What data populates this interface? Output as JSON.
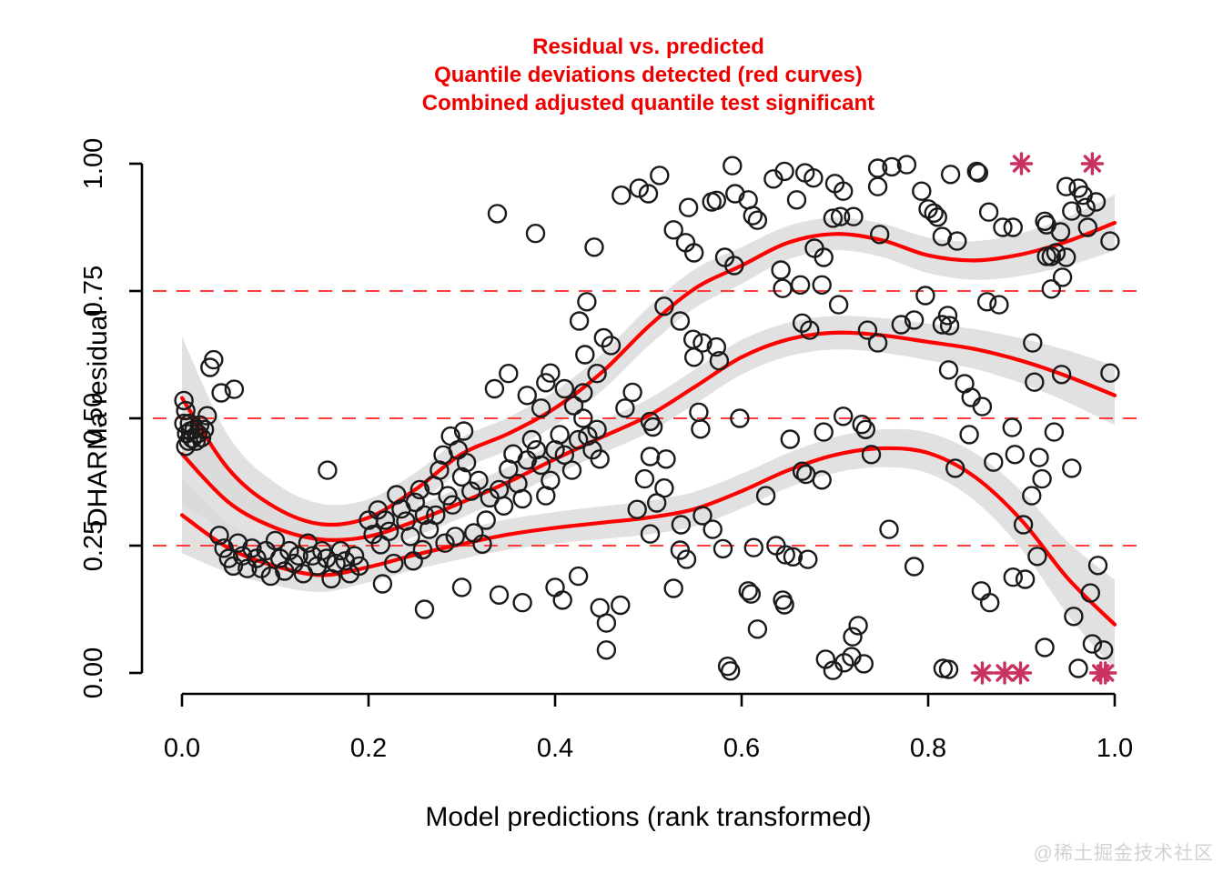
{
  "watermark": "@稀土掘金技术社区",
  "chart_data": {
    "type": "scatter",
    "title_lines": [
      "Residual vs. predicted",
      "Quantile deviations detected (red curves)",
      "Combined adjusted quantile test significant"
    ],
    "xlabel": "Model predictions (rank transformed)",
    "ylabel": "DHARMa residual",
    "xlim": [
      0,
      1
    ],
    "ylim": [
      0,
      1
    ],
    "grid": false,
    "x_ticks": {
      "values": [
        0,
        0.2,
        0.4,
        0.6,
        0.8,
        1.0
      ],
      "labels": [
        "0.0",
        "0.2",
        "0.4",
        "0.6",
        "0.8",
        "1.0"
      ]
    },
    "y_ticks": {
      "values": [
        0,
        0.25,
        0.5,
        0.75,
        1.0
      ],
      "labels": [
        "0.00",
        "0.25",
        "0.50",
        "0.75",
        "1.00"
      ]
    },
    "reference_lines": [
      0.25,
      0.5,
      0.75
    ],
    "colors": {
      "curve": "#ff0000",
      "reference": "#ff3b3b",
      "band": "#d9d9d9",
      "point": "#1a1a1a",
      "outlier": "#c9315e",
      "title": "#ee0000"
    },
    "quantile_curves": [
      {
        "name": "upper-0.75",
        "x": [
          0,
          0.05,
          0.1,
          0.15,
          0.2,
          0.25,
          0.3,
          0.35,
          0.4,
          0.45,
          0.5,
          0.55,
          0.6,
          0.65,
          0.7,
          0.75,
          0.8,
          0.85,
          0.9,
          0.95,
          1
        ],
        "y": [
          0.54,
          0.4,
          0.325,
          0.292,
          0.305,
          0.36,
          0.43,
          0.47,
          0.52,
          0.59,
          0.68,
          0.755,
          0.8,
          0.845,
          0.862,
          0.85,
          0.82,
          0.81,
          0.822,
          0.848,
          0.884
        ],
        "halfwidth": [
          0.12,
          0.065,
          0.048,
          0.04,
          0.036,
          0.033,
          0.032,
          0.032,
          0.034,
          0.036,
          0.038,
          0.038,
          0.036,
          0.033,
          0.032,
          0.033,
          0.035,
          0.038,
          0.042,
          0.048,
          0.055
        ]
      },
      {
        "name": "median-0.50",
        "x": [
          0,
          0.05,
          0.1,
          0.15,
          0.2,
          0.25,
          0.3,
          0.35,
          0.4,
          0.45,
          0.5,
          0.55,
          0.6,
          0.65,
          0.7,
          0.75,
          0.8,
          0.85,
          0.9,
          0.95,
          1
        ],
        "y": [
          0.43,
          0.335,
          0.285,
          0.262,
          0.268,
          0.298,
          0.335,
          0.375,
          0.42,
          0.463,
          0.505,
          0.562,
          0.62,
          0.655,
          0.668,
          0.663,
          0.65,
          0.636,
          0.613,
          0.582,
          0.545
        ],
        "halfwidth": [
          0.1,
          0.058,
          0.044,
          0.036,
          0.032,
          0.03,
          0.03,
          0.03,
          0.031,
          0.032,
          0.033,
          0.034,
          0.034,
          0.033,
          0.033,
          0.034,
          0.036,
          0.039,
          0.044,
          0.051,
          0.058
        ]
      },
      {
        "name": "lower-0.25",
        "x": [
          0,
          0.05,
          0.1,
          0.15,
          0.2,
          0.25,
          0.3,
          0.35,
          0.4,
          0.45,
          0.5,
          0.55,
          0.6,
          0.65,
          0.7,
          0.75,
          0.8,
          0.85,
          0.9,
          0.95,
          1
        ],
        "y": [
          0.31,
          0.245,
          0.21,
          0.192,
          0.208,
          0.232,
          0.253,
          0.272,
          0.285,
          0.295,
          0.305,
          0.322,
          0.357,
          0.398,
          0.428,
          0.441,
          0.432,
          0.385,
          0.3,
          0.185,
          0.095
        ],
        "halfwidth": [
          0.075,
          0.048,
          0.038,
          0.033,
          0.03,
          0.029,
          0.029,
          0.03,
          0.031,
          0.032,
          0.033,
          0.034,
          0.034,
          0.034,
          0.035,
          0.037,
          0.04,
          0.047,
          0.057,
          0.072,
          0.088
        ]
      }
    ],
    "outliers": {
      "top": [
        [
          0.9,
          1.0
        ],
        [
          0.976,
          1.0
        ]
      ],
      "bottom": [
        [
          0.858,
          0.0
        ],
        [
          0.882,
          0.0
        ],
        [
          0.899,
          0.0
        ],
        [
          0.985,
          0.0
        ],
        [
          0.99,
          0.0
        ]
      ]
    },
    "points": [
      [
        0.002,
        0.535
      ],
      [
        0.004,
        0.515
      ],
      [
        0.002,
        0.49
      ],
      [
        0.005,
        0.47
      ],
      [
        0.007,
        0.455
      ],
      [
        0.009,
        0.475
      ],
      [
        0.011,
        0.46
      ],
      [
        0.013,
        0.478
      ],
      [
        0.015,
        0.455
      ],
      [
        0.017,
        0.47
      ],
      [
        0.019,
        0.487
      ],
      [
        0.021,
        0.462
      ],
      [
        0.024,
        0.478
      ],
      [
        0.027,
        0.505
      ],
      [
        0.008,
        0.49
      ],
      [
        0.03,
        0.6
      ],
      [
        0.034,
        0.615
      ],
      [
        0.042,
        0.55
      ],
      [
        0.056,
        0.557
      ],
      [
        0.004,
        0.445
      ],
      [
        0.04,
        0.27
      ],
      [
        0.045,
        0.245
      ],
      [
        0.05,
        0.225
      ],
      [
        0.055,
        0.21
      ],
      [
        0.06,
        0.255
      ],
      [
        0.065,
        0.23
      ],
      [
        0.07,
        0.205
      ],
      [
        0.075,
        0.245
      ],
      [
        0.08,
        0.225
      ],
      [
        0.085,
        0.205
      ],
      [
        0.09,
        0.24
      ],
      [
        0.095,
        0.19
      ],
      [
        0.1,
        0.26
      ],
      [
        0.105,
        0.225
      ],
      [
        0.11,
        0.2
      ],
      [
        0.115,
        0.24
      ],
      [
        0.12,
        0.215
      ],
      [
        0.125,
        0.23
      ],
      [
        0.13,
        0.195
      ],
      [
        0.135,
        0.255
      ],
      [
        0.14,
        0.23
      ],
      [
        0.145,
        0.21
      ],
      [
        0.15,
        0.24
      ],
      [
        0.155,
        0.225
      ],
      [
        0.16,
        0.185
      ],
      [
        0.165,
        0.215
      ],
      [
        0.17,
        0.24
      ],
      [
        0.175,
        0.22
      ],
      [
        0.18,
        0.195
      ],
      [
        0.185,
        0.23
      ],
      [
        0.19,
        0.21
      ],
      [
        0.156,
        0.398
      ],
      [
        0.2,
        0.3
      ],
      [
        0.205,
        0.272
      ],
      [
        0.21,
        0.32
      ],
      [
        0.213,
        0.252
      ],
      [
        0.218,
        0.3
      ],
      [
        0.222,
        0.278
      ],
      [
        0.227,
        0.215
      ],
      [
        0.23,
        0.35
      ],
      [
        0.235,
        0.322
      ],
      [
        0.24,
        0.298
      ],
      [
        0.245,
        0.268
      ],
      [
        0.248,
        0.22
      ],
      [
        0.25,
        0.335
      ],
      [
        0.255,
        0.36
      ],
      [
        0.258,
        0.242
      ],
      [
        0.26,
        0.31
      ],
      [
        0.265,
        0.282
      ],
      [
        0.27,
        0.368
      ],
      [
        0.272,
        0.31
      ],
      [
        0.276,
        0.398
      ],
      [
        0.28,
        0.428
      ],
      [
        0.282,
        0.255
      ],
      [
        0.285,
        0.348
      ],
      [
        0.288,
        0.465
      ],
      [
        0.29,
        0.33
      ],
      [
        0.293,
        0.268
      ],
      [
        0.296,
        0.438
      ],
      [
        0.3,
        0.385
      ],
      [
        0.302,
        0.475
      ],
      [
        0.305,
        0.413
      ],
      [
        0.31,
        0.357
      ],
      [
        0.313,
        0.275
      ],
      [
        0.318,
        0.378
      ],
      [
        0.322,
        0.253
      ],
      [
        0.326,
        0.3
      ],
      [
        0.33,
        0.344
      ],
      [
        0.215,
        0.175
      ],
      [
        0.26,
        0.125
      ],
      [
        0.3,
        0.168
      ],
      [
        0.34,
        0.153
      ],
      [
        0.365,
        0.138
      ],
      [
        0.4,
        0.168
      ],
      [
        0.408,
        0.143
      ],
      [
        0.448,
        0.128
      ],
      [
        0.455,
        0.098
      ],
      [
        0.47,
        0.133
      ],
      [
        0.455,
        0.045
      ],
      [
        0.425,
        0.19
      ],
      [
        0.34,
        0.36
      ],
      [
        0.345,
        0.328
      ],
      [
        0.35,
        0.4
      ],
      [
        0.355,
        0.43
      ],
      [
        0.36,
        0.372
      ],
      [
        0.365,
        0.342
      ],
      [
        0.37,
        0.418
      ],
      [
        0.375,
        0.458
      ],
      [
        0.38,
        0.438
      ],
      [
        0.385,
        0.408
      ],
      [
        0.39,
        0.348
      ],
      [
        0.395,
        0.378
      ],
      [
        0.4,
        0.438
      ],
      [
        0.405,
        0.468
      ],
      [
        0.41,
        0.428
      ],
      [
        0.418,
        0.398
      ],
      [
        0.425,
        0.458
      ],
      [
        0.43,
        0.5
      ],
      [
        0.435,
        0.465
      ],
      [
        0.44,
        0.438
      ],
      [
        0.445,
        0.478
      ],
      [
        0.448,
        0.42
      ],
      [
        0.335,
        0.558
      ],
      [
        0.35,
        0.588
      ],
      [
        0.37,
        0.545
      ],
      [
        0.385,
        0.52
      ],
      [
        0.39,
        0.57
      ],
      [
        0.41,
        0.558
      ],
      [
        0.42,
        0.525
      ],
      [
        0.43,
        0.55
      ],
      [
        0.445,
        0.588
      ],
      [
        0.338,
        0.902
      ],
      [
        0.379,
        0.863
      ],
      [
        0.442,
        0.836
      ],
      [
        0.471,
        0.938
      ],
      [
        0.49,
        0.952
      ],
      [
        0.5,
        0.941
      ],
      [
        0.512,
        0.977
      ],
      [
        0.527,
        0.87
      ],
      [
        0.543,
        0.914
      ],
      [
        0.568,
        0.925
      ],
      [
        0.573,
        0.928
      ],
      [
        0.59,
        0.996
      ],
      [
        0.593,
        0.941
      ],
      [
        0.607,
        0.929
      ],
      [
        0.612,
        0.898
      ],
      [
        0.617,
        0.889
      ],
      [
        0.54,
        0.845
      ],
      [
        0.549,
        0.825
      ],
      [
        0.582,
        0.816
      ],
      [
        0.592,
        0.8
      ],
      [
        0.434,
        0.729
      ],
      [
        0.426,
        0.691
      ],
      [
        0.432,
        0.625
      ],
      [
        0.395,
        0.589
      ],
      [
        0.517,
        0.72
      ],
      [
        0.534,
        0.691
      ],
      [
        0.548,
        0.655
      ],
      [
        0.558,
        0.648
      ],
      [
        0.573,
        0.64
      ],
      [
        0.576,
        0.613
      ],
      [
        0.549,
        0.62
      ],
      [
        0.502,
        0.494
      ],
      [
        0.505,
        0.483
      ],
      [
        0.554,
        0.512
      ],
      [
        0.556,
        0.479
      ],
      [
        0.598,
        0.5
      ],
      [
        0.652,
        0.459
      ],
      [
        0.688,
        0.473
      ],
      [
        0.709,
        0.504
      ],
      [
        0.729,
        0.488
      ],
      [
        0.733,
        0.478
      ],
      [
        0.502,
        0.425
      ],
      [
        0.519,
        0.42
      ],
      [
        0.496,
        0.381
      ],
      [
        0.517,
        0.363
      ],
      [
        0.509,
        0.334
      ],
      [
        0.488,
        0.321
      ],
      [
        0.535,
        0.291
      ],
      [
        0.558,
        0.309
      ],
      [
        0.569,
        0.282
      ],
      [
        0.502,
        0.273
      ],
      [
        0.534,
        0.241
      ],
      [
        0.541,
        0.223
      ],
      [
        0.58,
        0.244
      ],
      [
        0.613,
        0.246
      ],
      [
        0.637,
        0.25
      ],
      [
        0.647,
        0.232
      ],
      [
        0.655,
        0.228
      ],
      [
        0.671,
        0.223
      ],
      [
        0.626,
        0.348
      ],
      [
        0.665,
        0.396
      ],
      [
        0.669,
        0.39
      ],
      [
        0.686,
        0.379
      ],
      [
        0.739,
        0.429
      ],
      [
        0.758,
        0.282
      ],
      [
        0.785,
        0.209
      ],
      [
        0.527,
        0.166
      ],
      [
        0.607,
        0.161
      ],
      [
        0.644,
        0.143
      ],
      [
        0.617,
        0.086
      ],
      [
        0.61,
        0.155
      ],
      [
        0.646,
        0.134
      ],
      [
        0.585,
        0.013
      ],
      [
        0.588,
        0.004
      ],
      [
        0.69,
        0.027
      ],
      [
        0.698,
        0.005
      ],
      [
        0.71,
        0.02
      ],
      [
        0.718,
        0.032
      ],
      [
        0.725,
        0.093
      ],
      [
        0.731,
        0.018
      ],
      [
        0.816,
        0.009
      ],
      [
        0.822,
        0.007
      ],
      [
        0.719,
        0.071
      ],
      [
        0.634,
        0.97
      ],
      [
        0.646,
        0.985
      ],
      [
        0.668,
        0.982
      ],
      [
        0.677,
        0.972
      ],
      [
        0.659,
        0.929
      ],
      [
        0.698,
        0.893
      ],
      [
        0.706,
        0.896
      ],
      [
        0.72,
        0.896
      ],
      [
        0.7,
        0.961
      ],
      [
        0.709,
        0.946
      ],
      [
        0.746,
        0.991
      ],
      [
        0.761,
        0.994
      ],
      [
        0.777,
        0.998
      ],
      [
        0.746,
        0.955
      ],
      [
        0.793,
        0.946
      ],
      [
        0.8,
        0.911
      ],
      [
        0.806,
        0.903
      ],
      [
        0.81,
        0.895
      ],
      [
        0.815,
        0.857
      ],
      [
        0.824,
        0.979
      ],
      [
        0.852,
        0.985
      ],
      [
        0.865,
        0.905
      ],
      [
        0.88,
        0.875
      ],
      [
        0.891,
        0.875
      ],
      [
        0.925,
        0.887
      ],
      [
        0.748,
        0.861
      ],
      [
        0.831,
        0.848
      ],
      [
        0.927,
        0.818
      ],
      [
        0.937,
        0.825
      ],
      [
        0.678,
        0.834
      ],
      [
        0.688,
        0.816
      ],
      [
        0.642,
        0.791
      ],
      [
        0.663,
        0.762
      ],
      [
        0.686,
        0.762
      ],
      [
        0.644,
        0.755
      ],
      [
        0.797,
        0.741
      ],
      [
        0.876,
        0.723
      ],
      [
        0.704,
        0.723
      ],
      [
        0.815,
        0.684
      ],
      [
        0.821,
        0.702
      ],
      [
        0.863,
        0.729
      ],
      [
        0.665,
        0.687
      ],
      [
        0.673,
        0.673
      ],
      [
        0.735,
        0.673
      ],
      [
        0.746,
        0.648
      ],
      [
        0.771,
        0.684
      ],
      [
        0.785,
        0.693
      ],
      [
        0.823,
        0.682
      ],
      [
        0.912,
        0.648
      ],
      [
        0.948,
        0.955
      ],
      [
        0.961,
        0.952
      ],
      [
        0.966,
        0.938
      ],
      [
        0.969,
        0.914
      ],
      [
        0.98,
        0.925
      ],
      [
        0.954,
        0.907
      ],
      [
        0.927,
        0.88
      ],
      [
        0.942,
        0.866
      ],
      [
        0.971,
        0.875
      ],
      [
        0.995,
        0.848
      ],
      [
        0.932,
        0.818
      ],
      [
        0.948,
        0.816
      ],
      [
        0.944,
        0.777
      ],
      [
        0.932,
        0.754
      ],
      [
        0.854,
        0.982
      ],
      [
        0.822,
        0.595
      ],
      [
        0.839,
        0.568
      ],
      [
        0.846,
        0.541
      ],
      [
        0.858,
        0.523
      ],
      [
        0.914,
        0.571
      ],
      [
        0.943,
        0.586
      ],
      [
        0.995,
        0.589
      ],
      [
        0.89,
        0.482
      ],
      [
        0.935,
        0.473
      ],
      [
        0.844,
        0.468
      ],
      [
        0.829,
        0.402
      ],
      [
        0.87,
        0.414
      ],
      [
        0.893,
        0.429
      ],
      [
        0.919,
        0.423
      ],
      [
        0.954,
        0.402
      ],
      [
        0.922,
        0.381
      ],
      [
        0.911,
        0.348
      ],
      [
        0.902,
        0.291
      ],
      [
        0.917,
        0.229
      ],
      [
        0.982,
        0.211
      ],
      [
        0.974,
        0.157
      ],
      [
        0.956,
        0.111
      ],
      [
        0.891,
        0.188
      ],
      [
        0.904,
        0.184
      ],
      [
        0.857,
        0.161
      ],
      [
        0.866,
        0.138
      ],
      [
        0.976,
        0.057
      ],
      [
        0.925,
        0.05
      ],
      [
        0.961,
        0.009
      ],
      [
        0.988,
        0.045
      ],
      [
        0.475,
        0.52
      ],
      [
        0.483,
        0.551
      ],
      [
        0.452,
        0.658
      ],
      [
        0.46,
        0.643
      ]
    ]
  }
}
